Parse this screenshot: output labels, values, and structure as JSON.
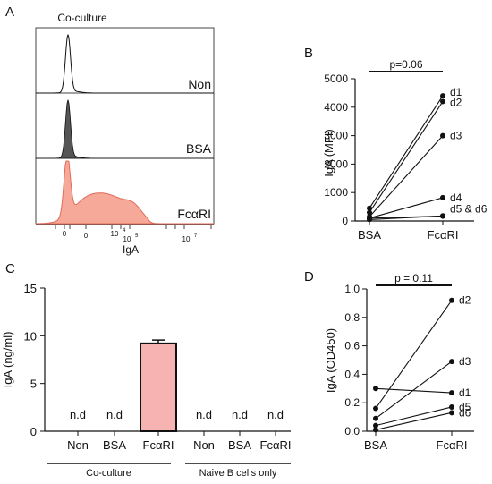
{
  "panel_letters": {
    "a": "A",
    "b": "B",
    "c": "C",
    "d": "D"
  },
  "colors": {
    "fcari_fill": "#f7a999",
    "fcari_line": "#e06a57",
    "bsa_fill": "#555555",
    "bar_fill": "#f7b2b2"
  },
  "chart_data": [
    {
      "panel": "A",
      "type": "area",
      "title": "Co-culture",
      "xlabel": "IgA",
      "x_scale": "biexponential",
      "x_ticks": [
        "0",
        "0",
        "10^4",
        "10^5",
        "10^7"
      ],
      "tracks": [
        {
          "name": "Non",
          "shape": "single narrow peak near 0",
          "filled": false
        },
        {
          "name": "BSA",
          "shape": "single narrow peak near 0",
          "filled": true,
          "color": "#555555"
        },
        {
          "name": "FcαRI",
          "shape": "peak near 0 with broad shoulder to ~10^5",
          "filled": true,
          "color": "#f7a999"
        }
      ]
    },
    {
      "panel": "B",
      "type": "scatter",
      "ylabel": "IgA (MFI)",
      "categories": [
        "BSA",
        "FcαRI"
      ],
      "ylim": [
        0,
        5000
      ],
      "yticks": [
        0,
        1000,
        2000,
        3000,
        4000,
        5000
      ],
      "significance": "p=0.06",
      "pairs": [
        {
          "label": "d1",
          "bsa": 450,
          "fcari": 4400
        },
        {
          "label": "d2",
          "bsa": 300,
          "fcari": 4200
        },
        {
          "label": "d3",
          "bsa": 150,
          "fcari": 3000
        },
        {
          "label": "d4",
          "bsa": 100,
          "fcari": 820
        },
        {
          "label": "d5 & d6",
          "bsa": 50,
          "fcari": 180
        },
        {
          "label": "",
          "bsa": 100,
          "fcari": 170
        }
      ]
    },
    {
      "panel": "C",
      "type": "bar",
      "ylabel": "IgA (ng/ml)",
      "ylim": [
        0,
        15
      ],
      "yticks": [
        0,
        5,
        10,
        15
      ],
      "categories": [
        "Non",
        "BSA",
        "FcαRI",
        "Non",
        "BSA",
        "FcαRI"
      ],
      "values": [
        null,
        null,
        9.2,
        null,
        null,
        null
      ],
      "error": [
        null,
        null,
        0.35,
        null,
        null,
        null
      ],
      "value_labels": [
        "n.d",
        "n.d",
        "",
        "n.d",
        "n.d",
        "n.d"
      ],
      "groups": [
        {
          "name": "Co-culture",
          "members": [
            0,
            1,
            2
          ]
        },
        {
          "name": "Naive B cells only",
          "members": [
            3,
            4,
            5
          ]
        }
      ]
    },
    {
      "panel": "D",
      "type": "scatter",
      "ylabel": "IgA (OD450)",
      "categories": [
        "BSA",
        "FcαRI"
      ],
      "ylim": [
        0,
        1.0
      ],
      "yticks": [
        0.0,
        0.2,
        0.4,
        0.6,
        0.8,
        1.0
      ],
      "significance": "p = 0.11",
      "pairs": [
        {
          "label": "d2",
          "bsa": 0.16,
          "fcari": 0.92
        },
        {
          "label": "d3",
          "bsa": 0.09,
          "fcari": 0.49
        },
        {
          "label": "d1",
          "bsa": 0.3,
          "fcari": 0.27
        },
        {
          "label": "d5",
          "bsa": 0.04,
          "fcari": 0.17
        },
        {
          "label": "d6",
          "bsa": 0.01,
          "fcari": 0.13
        }
      ]
    }
  ]
}
